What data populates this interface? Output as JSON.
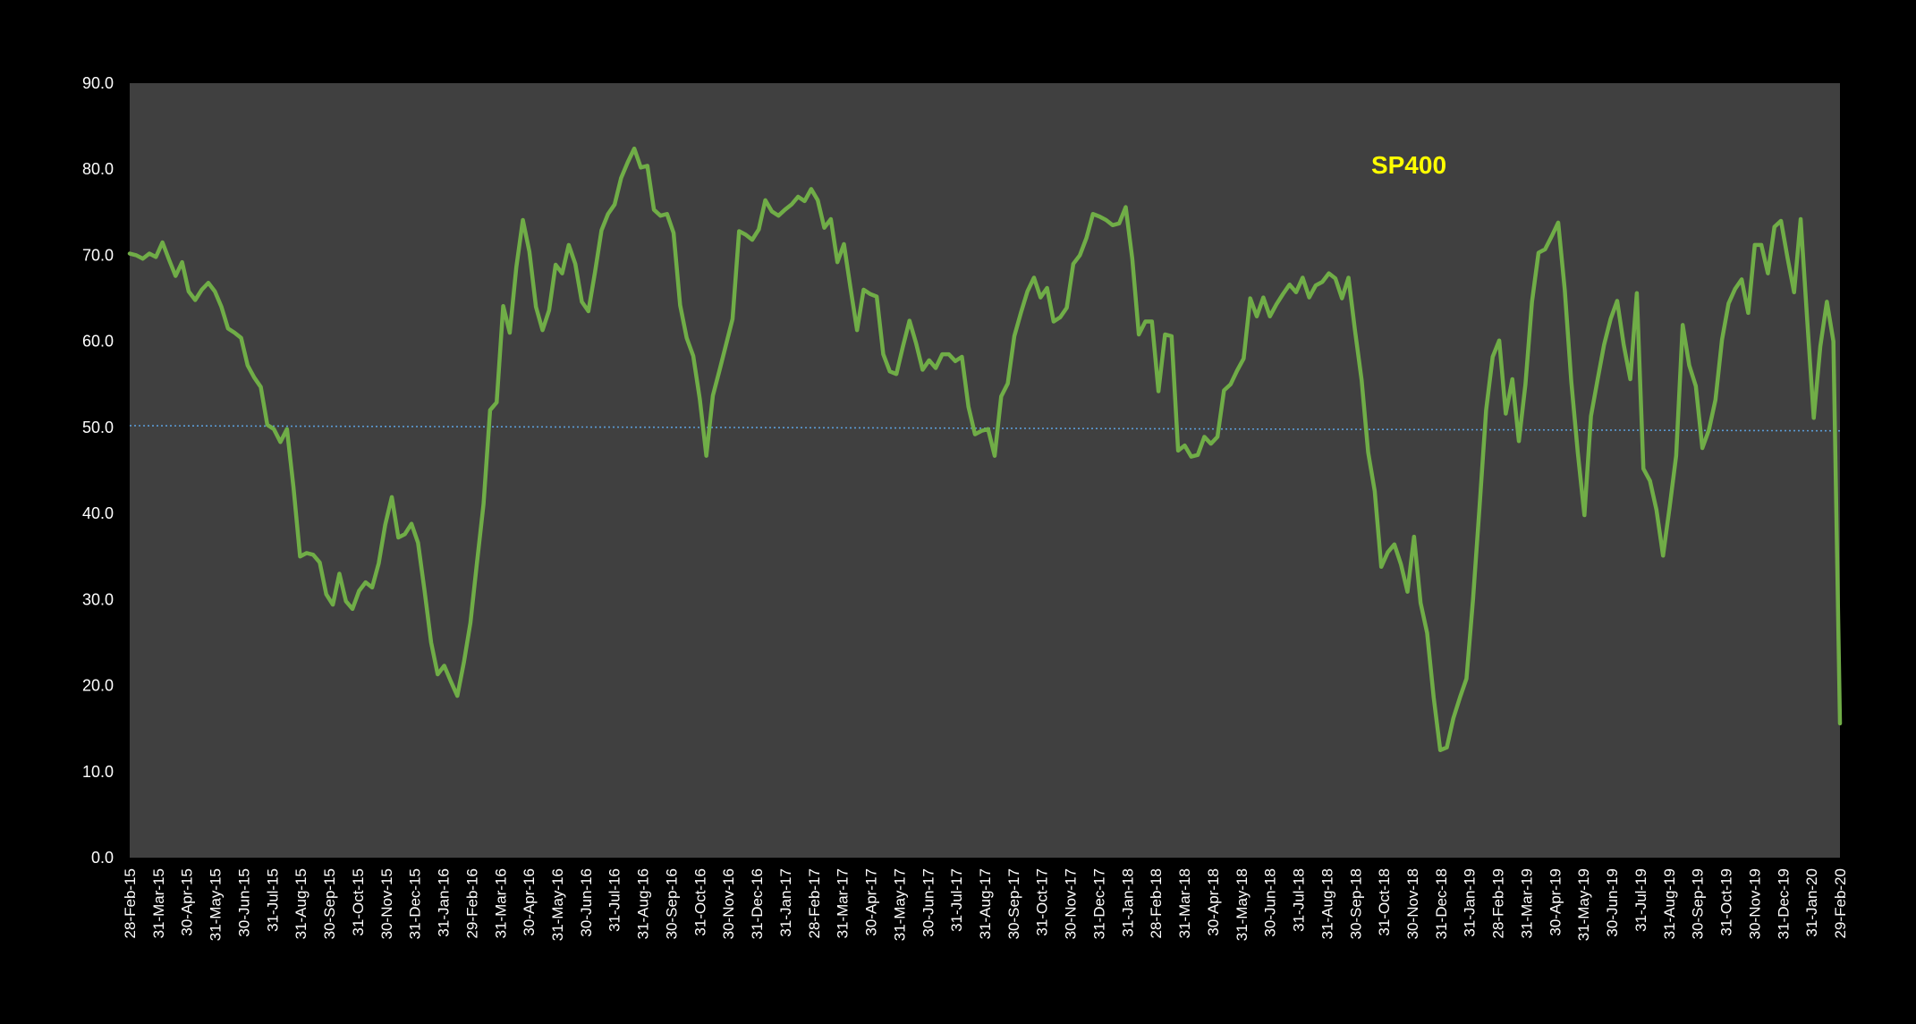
{
  "colors": {
    "page_background": "#000000",
    "plot_background": "#404040",
    "series_line": "#70ad47",
    "reference_line": "#5b9bd5",
    "title": "#ffff00",
    "tick_text": "#ffffff"
  },
  "chart_data": {
    "type": "line",
    "title": "SP400",
    "xlabel": "",
    "ylabel": "",
    "ylim": [
      0,
      90
    ],
    "yticks": [
      "0.0",
      "10.0",
      "20.0",
      "30.0",
      "40.0",
      "50.0",
      "60.0",
      "70.0",
      "80.0",
      "90.0"
    ],
    "grid": false,
    "legend": "none",
    "x_tick_labels": [
      "28-Feb-15",
      "31-Mar-15",
      "30-Apr-15",
      "31-May-15",
      "30-Jun-15",
      "31-Jul-15",
      "31-Aug-15",
      "30-Sep-15",
      "31-Oct-15",
      "30-Nov-15",
      "31-Dec-15",
      "31-Jan-16",
      "29-Feb-16",
      "31-Mar-16",
      "30-Apr-16",
      "31-May-16",
      "30-Jun-16",
      "31-Jul-16",
      "31-Aug-16",
      "30-Sep-16",
      "31-Oct-16",
      "30-Nov-16",
      "31-Dec-16",
      "31-Jan-17",
      "28-Feb-17",
      "31-Mar-17",
      "30-Apr-17",
      "31-May-17",
      "30-Jun-17",
      "31-Jul-17",
      "31-Aug-17",
      "30-Sep-17",
      "31-Oct-17",
      "30-Nov-17",
      "31-Dec-17",
      "31-Jan-18",
      "28-Feb-18",
      "31-Mar-18",
      "30-Apr-18",
      "31-May-18",
      "30-Jun-18",
      "31-Jul-18",
      "31-Aug-18",
      "30-Sep-18",
      "31-Oct-18",
      "30-Nov-18",
      "31-Dec-18",
      "31-Jan-19",
      "28-Feb-19",
      "31-Mar-19",
      "30-Apr-19",
      "31-May-19",
      "30-Jun-19",
      "31-Jul-19",
      "31-Aug-19",
      "30-Sep-19",
      "31-Oct-19",
      "30-Nov-19",
      "31-Dec-19",
      "31-Jan-20",
      "29-Feb-20"
    ],
    "x_range": [
      "28-Feb-15",
      "29-Feb-20"
    ],
    "reference_line": {
      "from": 50.2,
      "to": 49.6
    },
    "series": [
      {
        "values": [
          70.2,
          70.0,
          69.6,
          70.2,
          69.8,
          71.5,
          69.5,
          67.6,
          69.2,
          65.8,
          64.8,
          66.0,
          66.8,
          65.8,
          64.0,
          61.5,
          61.0,
          60.4,
          57.2,
          55.8,
          54.7,
          50.3,
          49.8,
          48.3,
          49.8,
          43.0,
          35.0,
          35.4,
          35.2,
          34.3,
          30.6,
          29.4,
          33.0,
          29.8,
          28.9,
          31.0,
          32.0,
          31.4,
          34.2,
          38.7,
          41.9,
          37.2,
          37.6,
          38.8,
          36.6,
          31.0,
          25.0,
          21.3,
          22.3,
          20.5,
          18.8,
          22.7,
          27.3,
          34.3,
          41.1,
          52.0,
          52.9,
          64.1,
          61.0,
          68.6,
          74.1,
          70.4,
          64.0,
          61.3,
          63.6,
          68.9,
          67.9,
          71.2,
          69.0,
          64.6,
          63.5,
          68.0,
          72.9,
          74.8,
          75.9,
          79.0,
          80.8,
          82.4,
          80.2,
          80.4,
          75.3,
          74.6,
          74.8,
          72.6,
          64.2,
          60.4,
          58.3,
          53.3,
          46.7,
          53.7,
          56.6,
          59.6,
          62.6,
          72.8,
          72.4,
          71.8,
          73.0,
          76.4,
          75.1,
          74.6,
          75.3,
          75.9,
          76.8,
          76.3,
          77.7,
          76.4,
          73.2,
          74.2,
          69.2,
          71.3,
          66.2,
          61.3,
          66.0,
          65.5,
          65.2,
          58.5,
          56.5,
          56.2,
          59.4,
          62.4,
          59.8,
          56.7,
          57.8,
          56.9,
          58.5,
          58.5,
          57.7,
          58.2,
          52.4,
          49.2,
          49.6,
          49.8,
          46.7,
          53.6,
          55.1,
          60.6,
          63.3,
          65.8,
          67.4,
          65.1,
          66.2,
          62.3,
          62.8,
          63.9,
          69.0,
          70.0,
          72.0,
          74.8,
          74.5,
          74.1,
          73.5,
          73.7,
          75.6,
          69.6,
          60.8,
          62.3,
          62.3,
          54.2,
          60.8,
          60.6,
          47.3,
          47.9,
          46.6,
          46.8,
          48.9,
          48.1,
          48.9,
          54.3,
          55.0,
          56.6,
          58.0,
          65.0,
          62.9,
          65.1,
          62.9,
          64.3,
          65.5,
          66.6,
          65.7,
          67.4,
          65.1,
          66.5,
          66.9,
          67.9,
          67.3,
          65.0,
          67.4,
          61.2,
          55.5,
          47.1,
          42.6,
          33.8,
          35.5,
          36.4,
          34.1,
          30.9,
          37.3,
          29.6,
          26.1,
          18.6,
          12.5,
          12.8,
          16.2,
          18.6,
          20.8,
          30.0,
          40.8,
          52.0,
          58.2,
          60.1,
          51.6,
          55.6,
          48.4,
          55.0,
          64.6,
          70.3,
          70.7,
          72.2,
          73.8,
          66.0,
          55.3,
          47.0,
          39.8,
          51.3,
          55.5,
          59.6,
          62.6,
          64.7,
          59.6,
          55.6,
          65.6,
          45.2,
          43.8,
          40.4,
          35.1,
          40.7,
          46.7,
          61.9,
          57.2,
          54.8,
          47.6,
          49.7,
          53.2,
          60.2,
          64.4,
          66.1,
          67.2,
          63.3,
          71.2,
          71.2,
          67.9,
          73.3,
          74.0,
          69.7,
          65.7,
          74.2,
          62.5,
          51.1,
          59.4,
          64.6,
          60.0,
          15.6
        ]
      }
    ]
  }
}
